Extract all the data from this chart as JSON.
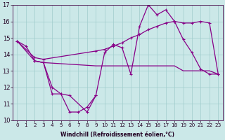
{
  "xlabel": "Windchill (Refroidissement éolien,°C)",
  "background_color": "#cbe8e8",
  "grid_color": "#a0cccc",
  "line_color": "#880088",
  "xlim": [
    -0.5,
    23.5
  ],
  "ylim": [
    10,
    17
  ],
  "yticks": [
    10,
    11,
    12,
    13,
    14,
    15,
    16,
    17
  ],
  "xticks": [
    0,
    1,
    2,
    3,
    4,
    5,
    6,
    7,
    8,
    9,
    10,
    11,
    12,
    13,
    14,
    15,
    16,
    17,
    18,
    19,
    20,
    21,
    22,
    23
  ],
  "series1_x": [
    0,
    1,
    2,
    3,
    4,
    5,
    6,
    7,
    8,
    9,
    10,
    11,
    12,
    13,
    14,
    15,
    16,
    17,
    18,
    19,
    20,
    21,
    22,
    23
  ],
  "series1_y": [
    14.8,
    14.5,
    13.6,
    13.5,
    11.6,
    11.6,
    10.5,
    10.5,
    10.8,
    11.5,
    14.1,
    14.6,
    14.4,
    12.8,
    15.7,
    17.0,
    16.4,
    16.7,
    16.0,
    14.9,
    14.1,
    13.1,
    12.8,
    12.8
  ],
  "series2_x": [
    0,
    2,
    3,
    9,
    10,
    11,
    12,
    13,
    14,
    15,
    16,
    17,
    18,
    19,
    20,
    21,
    22,
    23
  ],
  "series2_y": [
    14.8,
    13.6,
    13.5,
    13.3,
    13.3,
    13.3,
    13.3,
    13.3,
    13.3,
    13.3,
    13.3,
    13.3,
    13.3,
    13.0,
    13.0,
    13.0,
    13.0,
    12.8
  ],
  "series3_x": [
    0,
    2,
    3,
    9,
    10,
    11,
    12,
    13,
    14,
    15,
    16,
    17,
    18,
    19,
    20,
    21,
    22,
    23
  ],
  "series3_y": [
    14.8,
    13.8,
    13.7,
    14.2,
    14.3,
    14.5,
    14.7,
    15.0,
    15.2,
    15.5,
    15.7,
    15.9,
    16.0,
    15.9,
    15.9,
    16.0,
    15.9,
    12.8
  ],
  "series4_x": [
    2,
    3,
    4,
    5,
    6,
    8,
    9
  ],
  "series4_y": [
    13.6,
    13.5,
    12.0,
    11.6,
    11.5,
    10.5,
    11.5
  ]
}
